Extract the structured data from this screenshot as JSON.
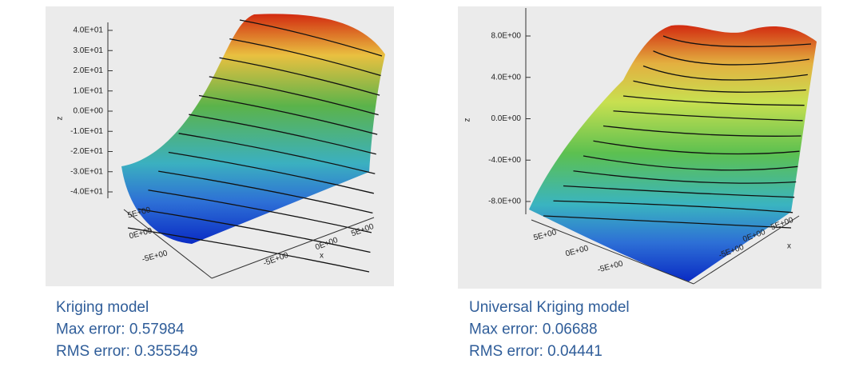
{
  "panels": [
    {
      "z_label": "z",
      "z_ticks": [
        "4.0E+01",
        "3.0E+01",
        "2.0E+01",
        "1.0E+01",
        "0.0E+00",
        "-1.0E+01",
        "-2.0E+01",
        "-3.0E+01",
        "-4.0E+01"
      ],
      "y_ticks": [
        "5E+00",
        "0E+00",
        "-5E+00"
      ],
      "x_label": "x",
      "x_ticks": [
        "-5E+00",
        "0E+00",
        "5E+00"
      ],
      "caption": [
        "Kriging model",
        "Max error: 0.57984",
        "RMS error: 0.355549"
      ]
    },
    {
      "z_label": "z",
      "z_ticks": [
        "8.0E+00",
        "4.0E+00",
        "0.0E+00",
        "-4.0E+00",
        "-8.0E+00"
      ],
      "y_ticks": [
        "5E+00",
        "0E+00",
        "-5E+00"
      ],
      "x_label": "x",
      "x_ticks": [
        "-5E+00",
        "0E+00",
        "5E+00"
      ],
      "caption": [
        "Universal Kriging model",
        "Max error: 0.06688",
        "RMS error: 0.04441"
      ]
    }
  ]
}
